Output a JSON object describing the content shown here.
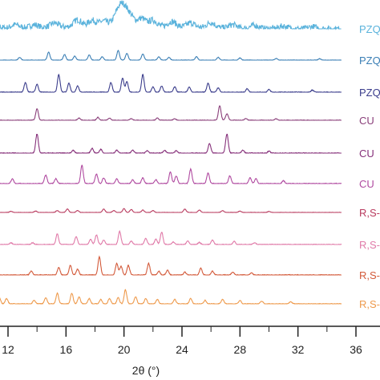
{
  "chart_data": {
    "type": "line",
    "xlabel": "2θ (°)",
    "xlim": [
      10.5,
      36
    ],
    "ticks": [
      12,
      16,
      20,
      24,
      28,
      32,
      36
    ],
    "tick_labels": [
      "12",
      "16",
      "20",
      "24",
      "28",
      "32",
      "36"
    ],
    "series": [
      {
        "name": "PZQ",
        "color": "#5bb3dc",
        "amorphous": true,
        "peaks": [
          [
            11.2,
            0.15
          ],
          [
            12.5,
            0.2
          ],
          [
            13.8,
            0.18
          ],
          [
            15.2,
            0.25
          ],
          [
            16.8,
            0.4
          ],
          [
            17.8,
            0.35
          ],
          [
            18.6,
            0.3
          ],
          [
            19.5,
            0.55
          ],
          [
            19.9,
            1.0
          ],
          [
            20.4,
            0.6
          ],
          [
            21.2,
            0.45
          ],
          [
            22.0,
            0.35
          ],
          [
            23.3,
            0.3
          ],
          [
            24.6,
            0.25
          ],
          [
            26.0,
            0.3
          ],
          [
            27.5,
            0.2
          ],
          [
            29.0,
            0.18
          ],
          [
            31.0,
            0.15
          ],
          [
            33.0,
            0.12
          ]
        ]
      },
      {
        "name": "PZQ",
        "color": "#3b7fb5",
        "peaks": [
          [
            12.8,
            0.25
          ],
          [
            14.8,
            0.7
          ],
          [
            15.9,
            0.5
          ],
          [
            16.6,
            0.35
          ],
          [
            17.6,
            0.45
          ],
          [
            18.5,
            0.3
          ],
          [
            19.6,
            0.85
          ],
          [
            20.2,
            0.6
          ],
          [
            21.3,
            0.55
          ],
          [
            22.4,
            0.3
          ],
          [
            23.1,
            0.25
          ],
          [
            25.0,
            0.3
          ],
          [
            26.5,
            0.25
          ],
          [
            28.0,
            0.2
          ],
          [
            30.5,
            0.15
          ],
          [
            33.5,
            0.12
          ]
        ]
      },
      {
        "name": "PZQ",
        "color": "#3b3d8c",
        "peaks": [
          [
            13.2,
            0.55
          ],
          [
            14.0,
            0.45
          ],
          [
            15.5,
            1.0
          ],
          [
            16.2,
            0.5
          ],
          [
            16.8,
            0.35
          ],
          [
            19.1,
            0.55
          ],
          [
            19.9,
            0.8
          ],
          [
            20.2,
            0.6
          ],
          [
            21.3,
            1.0
          ],
          [
            22.0,
            0.3
          ],
          [
            22.6,
            0.35
          ],
          [
            23.5,
            0.3
          ],
          [
            24.5,
            0.28
          ],
          [
            25.8,
            0.5
          ],
          [
            26.5,
            0.25
          ],
          [
            28.5,
            0.2
          ],
          [
            30.0,
            0.15
          ],
          [
            33.0,
            0.12
          ]
        ]
      },
      {
        "name": "CU",
        "color": "#8a3f7a",
        "peaks": [
          [
            14.0,
            0.8
          ],
          [
            16.9,
            0.15
          ],
          [
            18.2,
            0.2
          ],
          [
            19.0,
            0.15
          ],
          [
            20.5,
            0.12
          ],
          [
            22.3,
            0.15
          ],
          [
            23.5,
            0.1
          ],
          [
            26.6,
            1.0
          ],
          [
            27.1,
            0.45
          ],
          [
            28.4,
            0.12
          ],
          [
            30.5,
            0.1
          ]
        ]
      },
      {
        "name": "CU",
        "color": "#86307a",
        "peaks": [
          [
            14.0,
            1.0
          ],
          [
            16.5,
            0.15
          ],
          [
            17.8,
            0.25
          ],
          [
            18.4,
            0.2
          ],
          [
            19.5,
            0.15
          ],
          [
            20.6,
            0.15
          ],
          [
            21.6,
            0.12
          ],
          [
            22.8,
            0.15
          ],
          [
            23.6,
            0.12
          ],
          [
            25.9,
            0.5
          ],
          [
            27.1,
            1.0
          ],
          [
            28.2,
            0.15
          ],
          [
            30.0,
            0.1
          ]
        ]
      },
      {
        "name": "CU",
        "color": "#b04aa0",
        "peaks": [
          [
            12.3,
            0.25
          ],
          [
            14.6,
            0.45
          ],
          [
            15.3,
            0.25
          ],
          [
            17.1,
            0.95
          ],
          [
            18.1,
            0.5
          ],
          [
            18.6,
            0.3
          ],
          [
            19.5,
            0.25
          ],
          [
            20.6,
            0.2
          ],
          [
            21.3,
            0.3
          ],
          [
            22.2,
            0.2
          ],
          [
            23.2,
            0.6
          ],
          [
            23.6,
            0.4
          ],
          [
            24.6,
            0.75
          ],
          [
            25.8,
            0.55
          ],
          [
            27.3,
            0.4
          ],
          [
            28.7,
            0.3
          ],
          [
            29.1,
            0.25
          ],
          [
            31.0,
            0.15
          ]
        ]
      },
      {
        "name": "R,S-",
        "color": "#b83a5e",
        "peaks": [
          [
            12.2,
            0.12
          ],
          [
            13.9,
            0.15
          ],
          [
            15.4,
            0.2
          ],
          [
            16.1,
            0.35
          ],
          [
            16.8,
            0.2
          ],
          [
            18.6,
            0.35
          ],
          [
            19.3,
            0.2
          ],
          [
            20.0,
            0.4
          ],
          [
            20.5,
            0.3
          ],
          [
            21.3,
            0.25
          ],
          [
            22.0,
            0.2
          ],
          [
            24.2,
            0.35
          ],
          [
            25.2,
            0.25
          ],
          [
            26.8,
            0.2
          ],
          [
            28.0,
            0.15
          ],
          [
            30.0,
            0.1
          ]
        ]
      },
      {
        "name": "R,S-",
        "color": "#e07aa8",
        "peaks": [
          [
            12.2,
            0.1
          ],
          [
            13.7,
            0.1
          ],
          [
            15.4,
            0.6
          ],
          [
            16.7,
            0.45
          ],
          [
            17.7,
            0.3
          ],
          [
            18.1,
            0.55
          ],
          [
            18.6,
            0.25
          ],
          [
            19.7,
            0.75
          ],
          [
            20.5,
            0.2
          ],
          [
            21.5,
            0.35
          ],
          [
            22.2,
            0.3
          ],
          [
            22.6,
            0.7
          ],
          [
            23.4,
            0.15
          ],
          [
            24.4,
            0.2
          ],
          [
            25.2,
            0.12
          ],
          [
            26.1,
            0.25
          ],
          [
            27.6,
            0.18
          ],
          [
            29.0,
            0.1
          ]
        ]
      },
      {
        "name": "R,S-",
        "color": "#d35a3a",
        "peaks": [
          [
            13.6,
            0.2
          ],
          [
            15.5,
            0.4
          ],
          [
            16.3,
            0.5
          ],
          [
            16.8,
            0.3
          ],
          [
            18.3,
            0.95
          ],
          [
            19.5,
            0.6
          ],
          [
            19.8,
            0.45
          ],
          [
            20.3,
            0.5
          ],
          [
            21.7,
            0.6
          ],
          [
            22.4,
            0.2
          ],
          [
            23.0,
            0.25
          ],
          [
            24.2,
            0.15
          ],
          [
            25.3,
            0.35
          ],
          [
            26.1,
            0.2
          ],
          [
            27.5,
            0.15
          ],
          [
            28.8,
            0.1
          ]
        ]
      },
      {
        "name": "R,S-",
        "color": "#ee9a4c",
        "peaks": [
          [
            10.9,
            0.3
          ],
          [
            11.4,
            0.35
          ],
          [
            11.9,
            0.3
          ],
          [
            13.8,
            0.2
          ],
          [
            14.6,
            0.35
          ],
          [
            15.4,
            0.6
          ],
          [
            16.4,
            0.6
          ],
          [
            16.9,
            0.4
          ],
          [
            17.6,
            0.3
          ],
          [
            18.4,
            0.25
          ],
          [
            19.0,
            0.3
          ],
          [
            19.6,
            0.35
          ],
          [
            20.1,
            0.8
          ],
          [
            20.8,
            0.4
          ],
          [
            21.5,
            0.3
          ],
          [
            22.3,
            0.25
          ],
          [
            23.5,
            0.25
          ],
          [
            24.6,
            0.3
          ],
          [
            25.6,
            0.2
          ],
          [
            26.8,
            0.25
          ],
          [
            28.0,
            0.2
          ],
          [
            29.5,
            0.15
          ],
          [
            31.5,
            0.12
          ]
        ]
      }
    ]
  }
}
